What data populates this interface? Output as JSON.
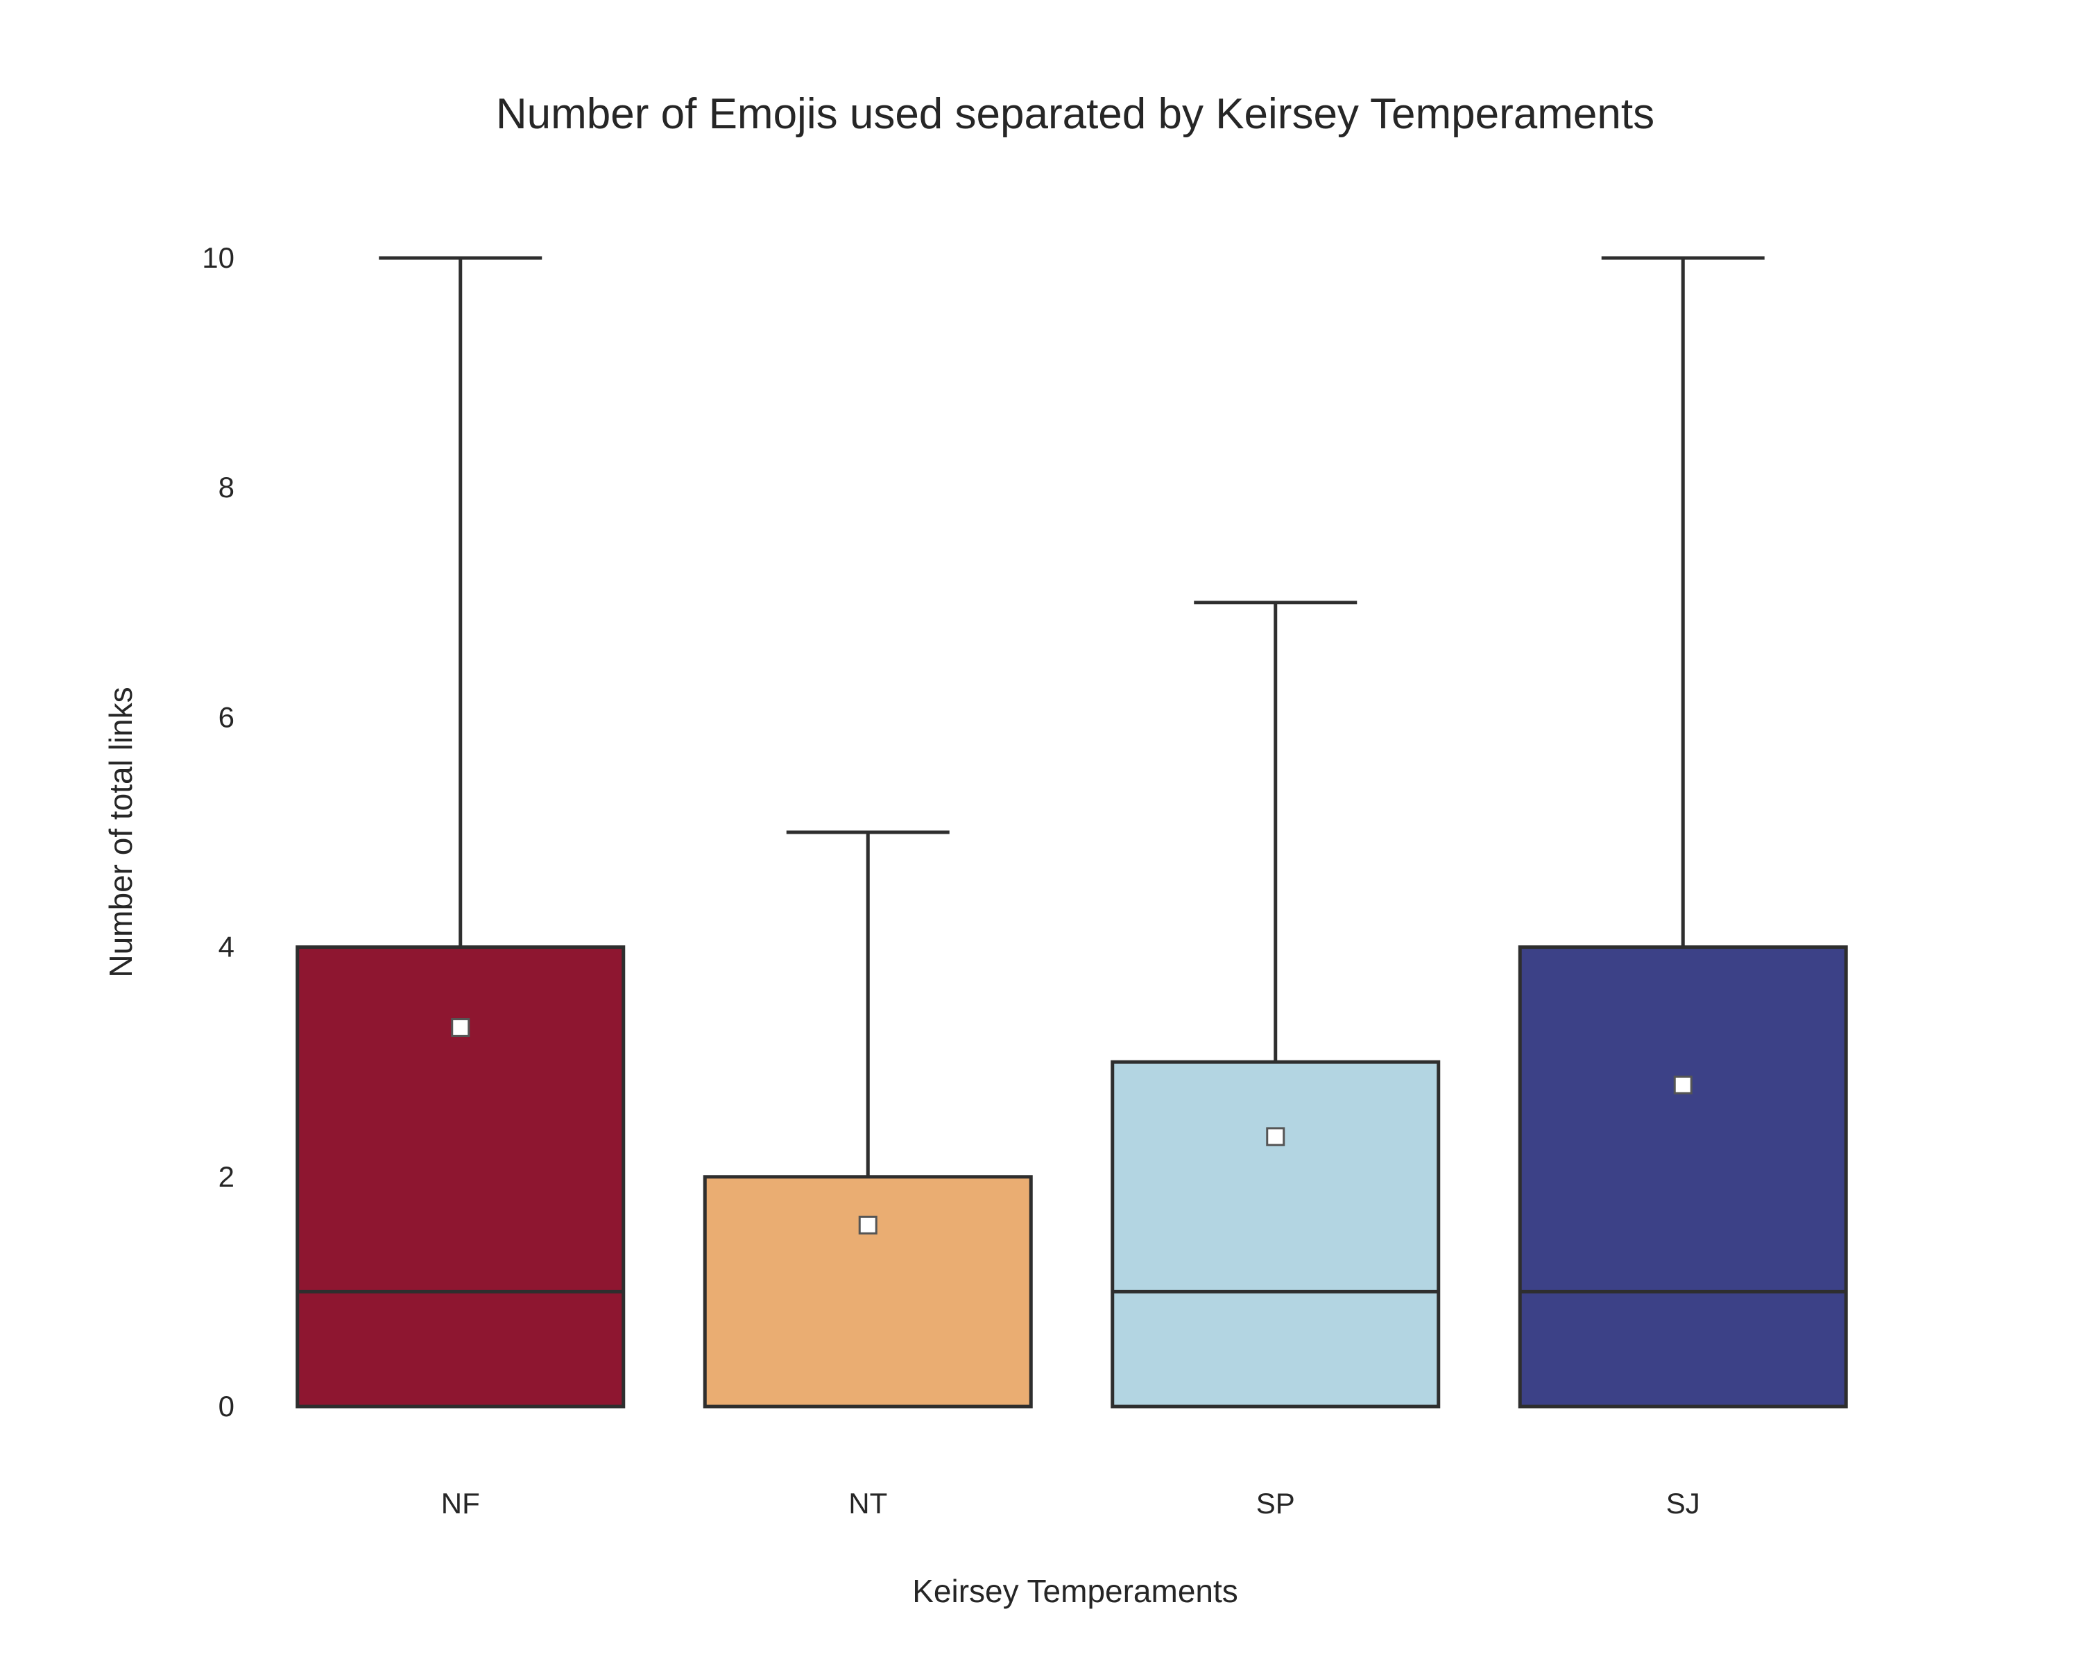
{
  "chart_data": {
    "type": "box",
    "title": "Number of Emojis used separated by Keirsey Temperaments",
    "xlabel": "Keirsey Temperaments",
    "ylabel": "Number of total links",
    "categories": [
      "NF",
      "NT",
      "SP",
      "SJ"
    ],
    "colors": [
      "#8e1630",
      "#eaad72",
      "#b3d5e2",
      "#3c4187"
    ],
    "ylim": [
      0,
      10
    ],
    "yticks": [
      0,
      2,
      4,
      6,
      8,
      10
    ],
    "grid": false,
    "boxes": [
      {
        "category": "NF",
        "min": 0,
        "q1": 0,
        "median": 1,
        "q3": 4,
        "max": 10,
        "mean": 3.3
      },
      {
        "category": "NT",
        "min": 0,
        "q1": 0,
        "median": 0,
        "q3": 2,
        "max": 5,
        "mean": 1.58
      },
      {
        "category": "SP",
        "min": 0,
        "q1": 0,
        "median": 1,
        "q3": 3,
        "max": 7,
        "mean": 2.35
      },
      {
        "category": "SJ",
        "min": 0,
        "q1": 0,
        "median": 1,
        "q3": 4,
        "max": 10,
        "mean": 2.8
      }
    ]
  }
}
